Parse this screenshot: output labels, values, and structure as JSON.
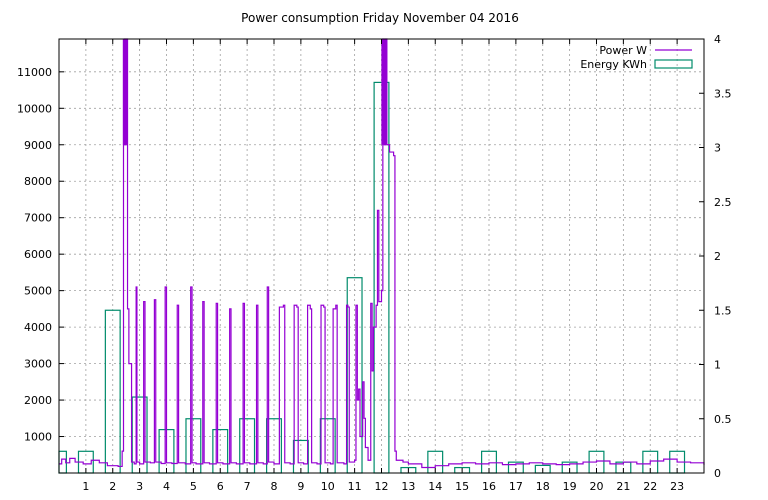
{
  "chart_data": {
    "type": "line",
    "title": "Power consumption Friday November 04 2016",
    "xlabel": "",
    "ylabel": "",
    "y2label": "",
    "xlim": [
      0,
      24
    ],
    "ylim": [
      0,
      11900
    ],
    "y2lim": [
      0,
      4
    ],
    "x_ticks": [
      "1",
      "2",
      "3",
      "4",
      "5",
      "6",
      "7",
      "8",
      "9",
      "10",
      "11",
      "12",
      "13",
      "14",
      "15",
      "16",
      "17",
      "18",
      "19",
      "20",
      "21",
      "22",
      "23"
    ],
    "y_ticks": [
      1000,
      2000,
      3000,
      4000,
      5000,
      6000,
      7000,
      8000,
      9000,
      10000,
      11000
    ],
    "y2_ticks": [
      "0",
      "0.5",
      "1",
      "1.5",
      "2",
      "2.5",
      "3",
      "3.5",
      "4"
    ],
    "grid": true,
    "legend_position": "top-right",
    "series": [
      {
        "name": "Power W",
        "axis": "left",
        "color": "#9400d3",
        "points": [
          [
            0.0,
            250
          ],
          [
            0.1,
            380
          ],
          [
            0.25,
            280
          ],
          [
            0.4,
            400
          ],
          [
            0.6,
            300
          ],
          [
            0.9,
            250
          ],
          [
            1.2,
            350
          ],
          [
            1.5,
            280
          ],
          [
            1.8,
            200
          ],
          [
            2.2,
            180
          ],
          [
            2.35,
            600
          ],
          [
            2.4,
            9000
          ],
          [
            2.43,
            11900
          ],
          [
            2.46,
            9000
          ],
          [
            2.5,
            11900
          ],
          [
            2.55,
            4500
          ],
          [
            2.6,
            3000
          ],
          [
            2.7,
            300
          ],
          [
            2.8,
            250
          ],
          [
            2.87,
            5100
          ],
          [
            2.9,
            300
          ],
          [
            3.0,
            250
          ],
          [
            3.15,
            4700
          ],
          [
            3.2,
            300
          ],
          [
            3.4,
            280
          ],
          [
            3.55,
            4750
          ],
          [
            3.6,
            300
          ],
          [
            3.8,
            260
          ],
          [
            3.95,
            5100
          ],
          [
            4.0,
            280
          ],
          [
            4.2,
            260
          ],
          [
            4.4,
            4600
          ],
          [
            4.45,
            280
          ],
          [
            4.7,
            250
          ],
          [
            4.9,
            5100
          ],
          [
            4.95,
            280
          ],
          [
            5.1,
            250
          ],
          [
            5.35,
            4700
          ],
          [
            5.4,
            280
          ],
          [
            5.6,
            250
          ],
          [
            5.85,
            4650
          ],
          [
            5.9,
            280
          ],
          [
            6.1,
            250
          ],
          [
            6.35,
            4500
          ],
          [
            6.4,
            280
          ],
          [
            6.6,
            250
          ],
          [
            6.85,
            4650
          ],
          [
            6.9,
            280
          ],
          [
            7.1,
            250
          ],
          [
            7.35,
            4600
          ],
          [
            7.4,
            280
          ],
          [
            7.6,
            250
          ],
          [
            7.75,
            5100
          ],
          [
            7.8,
            300
          ],
          [
            8.0,
            250
          ],
          [
            8.2,
            4550
          ],
          [
            8.35,
            4600
          ],
          [
            8.4,
            280
          ],
          [
            8.6,
            250
          ],
          [
            8.75,
            4600
          ],
          [
            8.85,
            4550
          ],
          [
            8.9,
            280
          ],
          [
            9.1,
            250
          ],
          [
            9.25,
            4600
          ],
          [
            9.35,
            4500
          ],
          [
            9.4,
            280
          ],
          [
            9.6,
            250
          ],
          [
            9.75,
            4600
          ],
          [
            9.85,
            4550
          ],
          [
            9.9,
            280
          ],
          [
            10.1,
            250
          ],
          [
            10.2,
            4500
          ],
          [
            10.3,
            4600
          ],
          [
            10.35,
            280
          ],
          [
            10.6,
            250
          ],
          [
            10.7,
            4600
          ],
          [
            10.75,
            4550
          ],
          [
            10.8,
            300
          ],
          [
            11.0,
            350
          ],
          [
            11.05,
            4600
          ],
          [
            11.1,
            2000
          ],
          [
            11.15,
            2300
          ],
          [
            11.2,
            1000
          ],
          [
            11.3,
            2500
          ],
          [
            11.35,
            1500
          ],
          [
            11.4,
            700
          ],
          [
            11.5,
            350
          ],
          [
            11.6,
            4650
          ],
          [
            11.65,
            2800
          ],
          [
            11.7,
            4000
          ],
          [
            11.8,
            4600
          ],
          [
            11.85,
            7200
          ],
          [
            11.9,
            4700
          ],
          [
            12.0,
            5000
          ],
          [
            12.05,
            11900
          ],
          [
            12.1,
            9000
          ],
          [
            12.15,
            11900
          ],
          [
            12.2,
            9000
          ],
          [
            12.3,
            8800
          ],
          [
            12.45,
            8700
          ],
          [
            12.5,
            600
          ],
          [
            12.55,
            350
          ],
          [
            12.8,
            300
          ],
          [
            13.0,
            250
          ],
          [
            13.5,
            150
          ],
          [
            14.0,
            200
          ],
          [
            14.5,
            250
          ],
          [
            15.0,
            280
          ],
          [
            15.5,
            250
          ],
          [
            16.0,
            280
          ],
          [
            16.5,
            230
          ],
          [
            17.0,
            250
          ],
          [
            17.5,
            280
          ],
          [
            18.0,
            250
          ],
          [
            18.5,
            230
          ],
          [
            19.0,
            250
          ],
          [
            19.5,
            300
          ],
          [
            20.0,
            330
          ],
          [
            20.5,
            250
          ],
          [
            21.0,
            300
          ],
          [
            21.5,
            250
          ],
          [
            22.0,
            330
          ],
          [
            22.5,
            380
          ],
          [
            23.0,
            300
          ],
          [
            23.5,
            280
          ],
          [
            24.0,
            220
          ]
        ]
      },
      {
        "name": "Energy KWh",
        "axis": "right",
        "color": "#008b6b",
        "bars": [
          {
            "x": 0.0,
            "v": 0.2
          },
          {
            "x": 1.0,
            "v": 0.2
          },
          {
            "x": 2.0,
            "v": 1.5
          },
          {
            "x": 3.0,
            "v": 0.7
          },
          {
            "x": 4.0,
            "v": 0.4
          },
          {
            "x": 5.0,
            "v": 0.5
          },
          {
            "x": 6.0,
            "v": 0.4
          },
          {
            "x": 7.0,
            "v": 0.5
          },
          {
            "x": 8.0,
            "v": 0.5
          },
          {
            "x": 9.0,
            "v": 0.3
          },
          {
            "x": 10.0,
            "v": 0.5
          },
          {
            "x": 11.0,
            "v": 1.8
          },
          {
            "x": 12.0,
            "v": 3.6
          },
          {
            "x": 13.0,
            "v": 0.05
          },
          {
            "x": 14.0,
            "v": 0.2
          },
          {
            "x": 15.0,
            "v": 0.05
          },
          {
            "x": 16.0,
            "v": 0.2
          },
          {
            "x": 17.0,
            "v": 0.1
          },
          {
            "x": 18.0,
            "v": 0.07
          },
          {
            "x": 19.0,
            "v": 0.1
          },
          {
            "x": 20.0,
            "v": 0.2
          },
          {
            "x": 21.0,
            "v": 0.1
          },
          {
            "x": 22.0,
            "v": 0.2
          },
          {
            "x": 23.0,
            "v": 0.2
          }
        ]
      }
    ]
  }
}
